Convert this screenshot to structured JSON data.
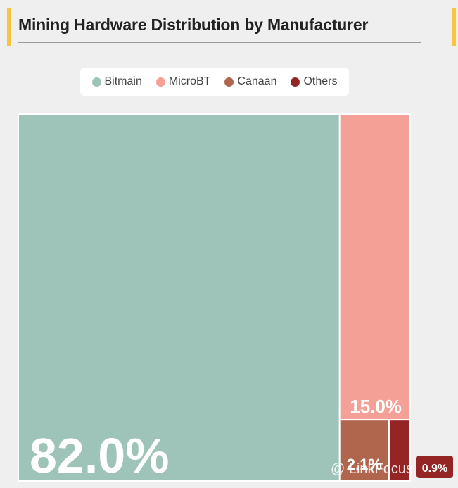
{
  "header": {
    "title": "Mining Hardware Distribution by Manufacturer"
  },
  "chart_data": {
    "type": "treemap",
    "title": "Mining Hardware Distribution by Manufacturer",
    "legend_position": "top-center",
    "series": [
      {
        "name": "Bitmain",
        "value": 82.0,
        "label": "82.0%",
        "color": "#9ec3b8"
      },
      {
        "name": "MicroBT",
        "value": 15.0,
        "label": "15.0%",
        "color": "#f5a097"
      },
      {
        "name": "Canaan",
        "value": 2.1,
        "label": "2.1%",
        "color": "#b0654d"
      },
      {
        "name": "Others",
        "value": 0.9,
        "label": "0.9%",
        "color": "#952424"
      }
    ]
  },
  "watermark": {
    "text": "@ LinkFocus"
  },
  "colors": {
    "accent": "#f7c53f",
    "background": "#eeefee"
  }
}
